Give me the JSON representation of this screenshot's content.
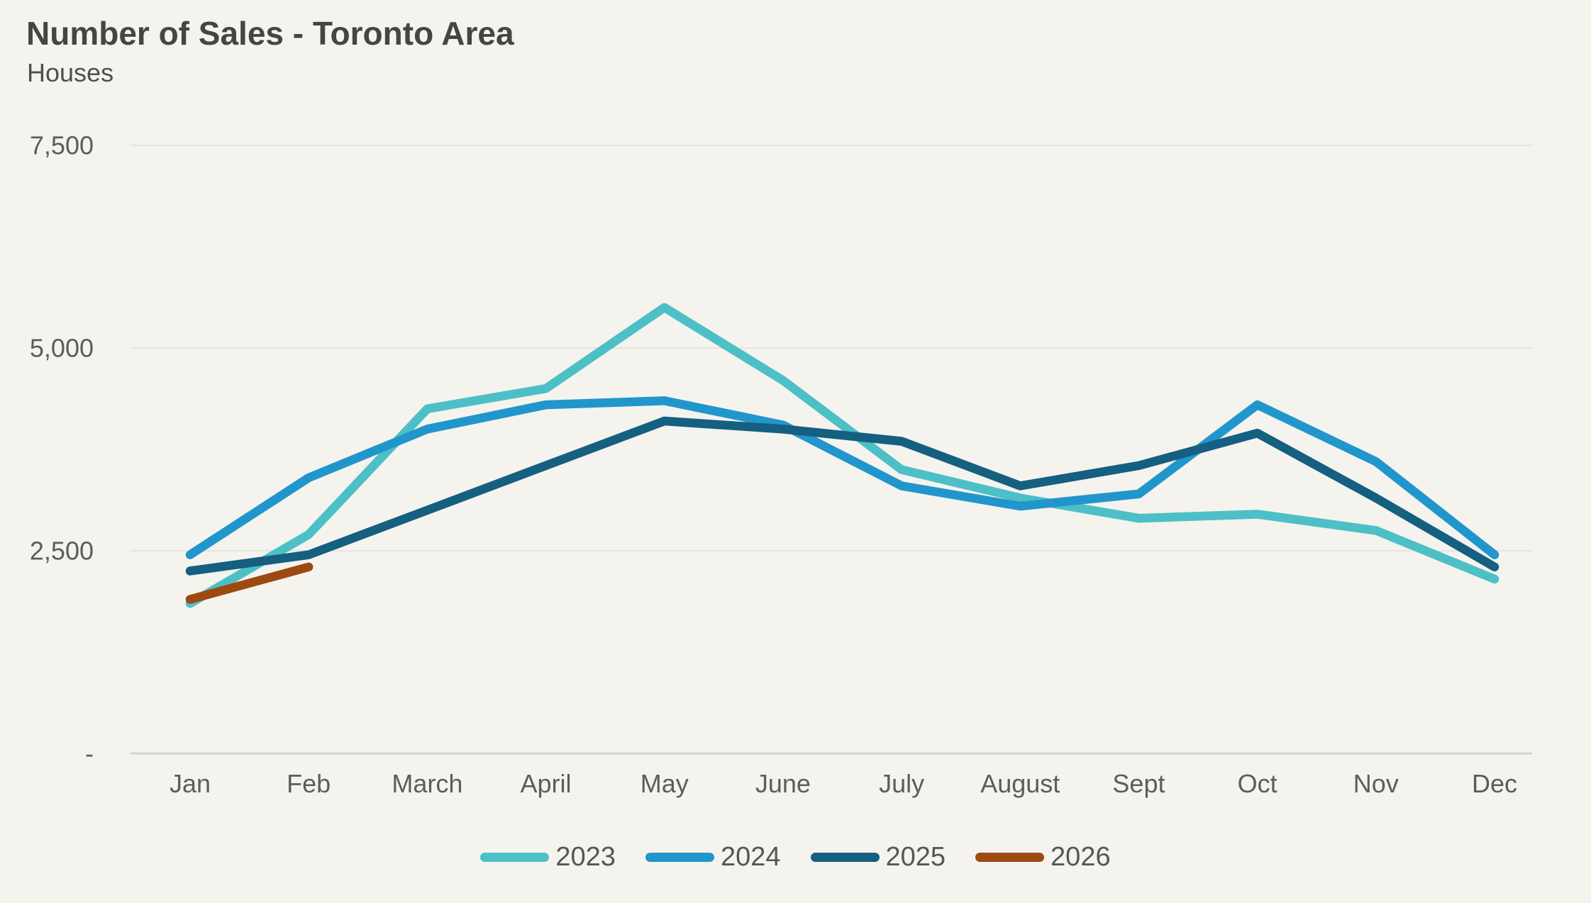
{
  "chart_data": {
    "type": "line",
    "title": "Number of Sales - Toronto Area",
    "subtitle": "Houses",
    "categories": [
      "Jan",
      "Feb",
      "March",
      "April",
      "May",
      "June",
      "July",
      "August",
      "Sept",
      "Oct",
      "Nov",
      "Dec"
    ],
    "yticks": [
      {
        "label": "7,500",
        "value": 7500
      },
      {
        "label": "5,000",
        "value": 5000
      },
      {
        "label": "2,500",
        "value": 2500
      },
      {
        "label": "-",
        "value": 0
      }
    ],
    "ylim": [
      0,
      7500
    ],
    "grid": "horizontal",
    "legend_position": "bottom-center",
    "series": [
      {
        "name": "2023",
        "color": "#4cc0c6",
        "values": [
          1850,
          2700,
          4250,
          4500,
          5500,
          4600,
          3500,
          3150,
          2900,
          2950,
          2750,
          2150
        ]
      },
      {
        "name": "2024",
        "color": "#2196cc",
        "values": [
          2450,
          3400,
          4000,
          4300,
          4350,
          4050,
          3300,
          3050,
          3200,
          4300,
          3600,
          2450
        ]
      },
      {
        "name": "2025",
        "color": "#155f80",
        "values": [
          2250,
          2450,
          3000,
          3550,
          4100,
          4000,
          3850,
          3300,
          3550,
          3950,
          3150,
          2300
        ]
      },
      {
        "name": "2026",
        "color": "#9c4a12",
        "values": [
          1900,
          2300,
          null,
          null,
          null,
          null,
          null,
          null,
          null,
          null,
          null,
          null
        ]
      }
    ],
    "colors": {
      "background": "#f5f3ee",
      "title": "#454545",
      "axis_label": "#5d5c58",
      "gridline": "#e6e4df",
      "zero_line": "#d2cfca"
    }
  }
}
